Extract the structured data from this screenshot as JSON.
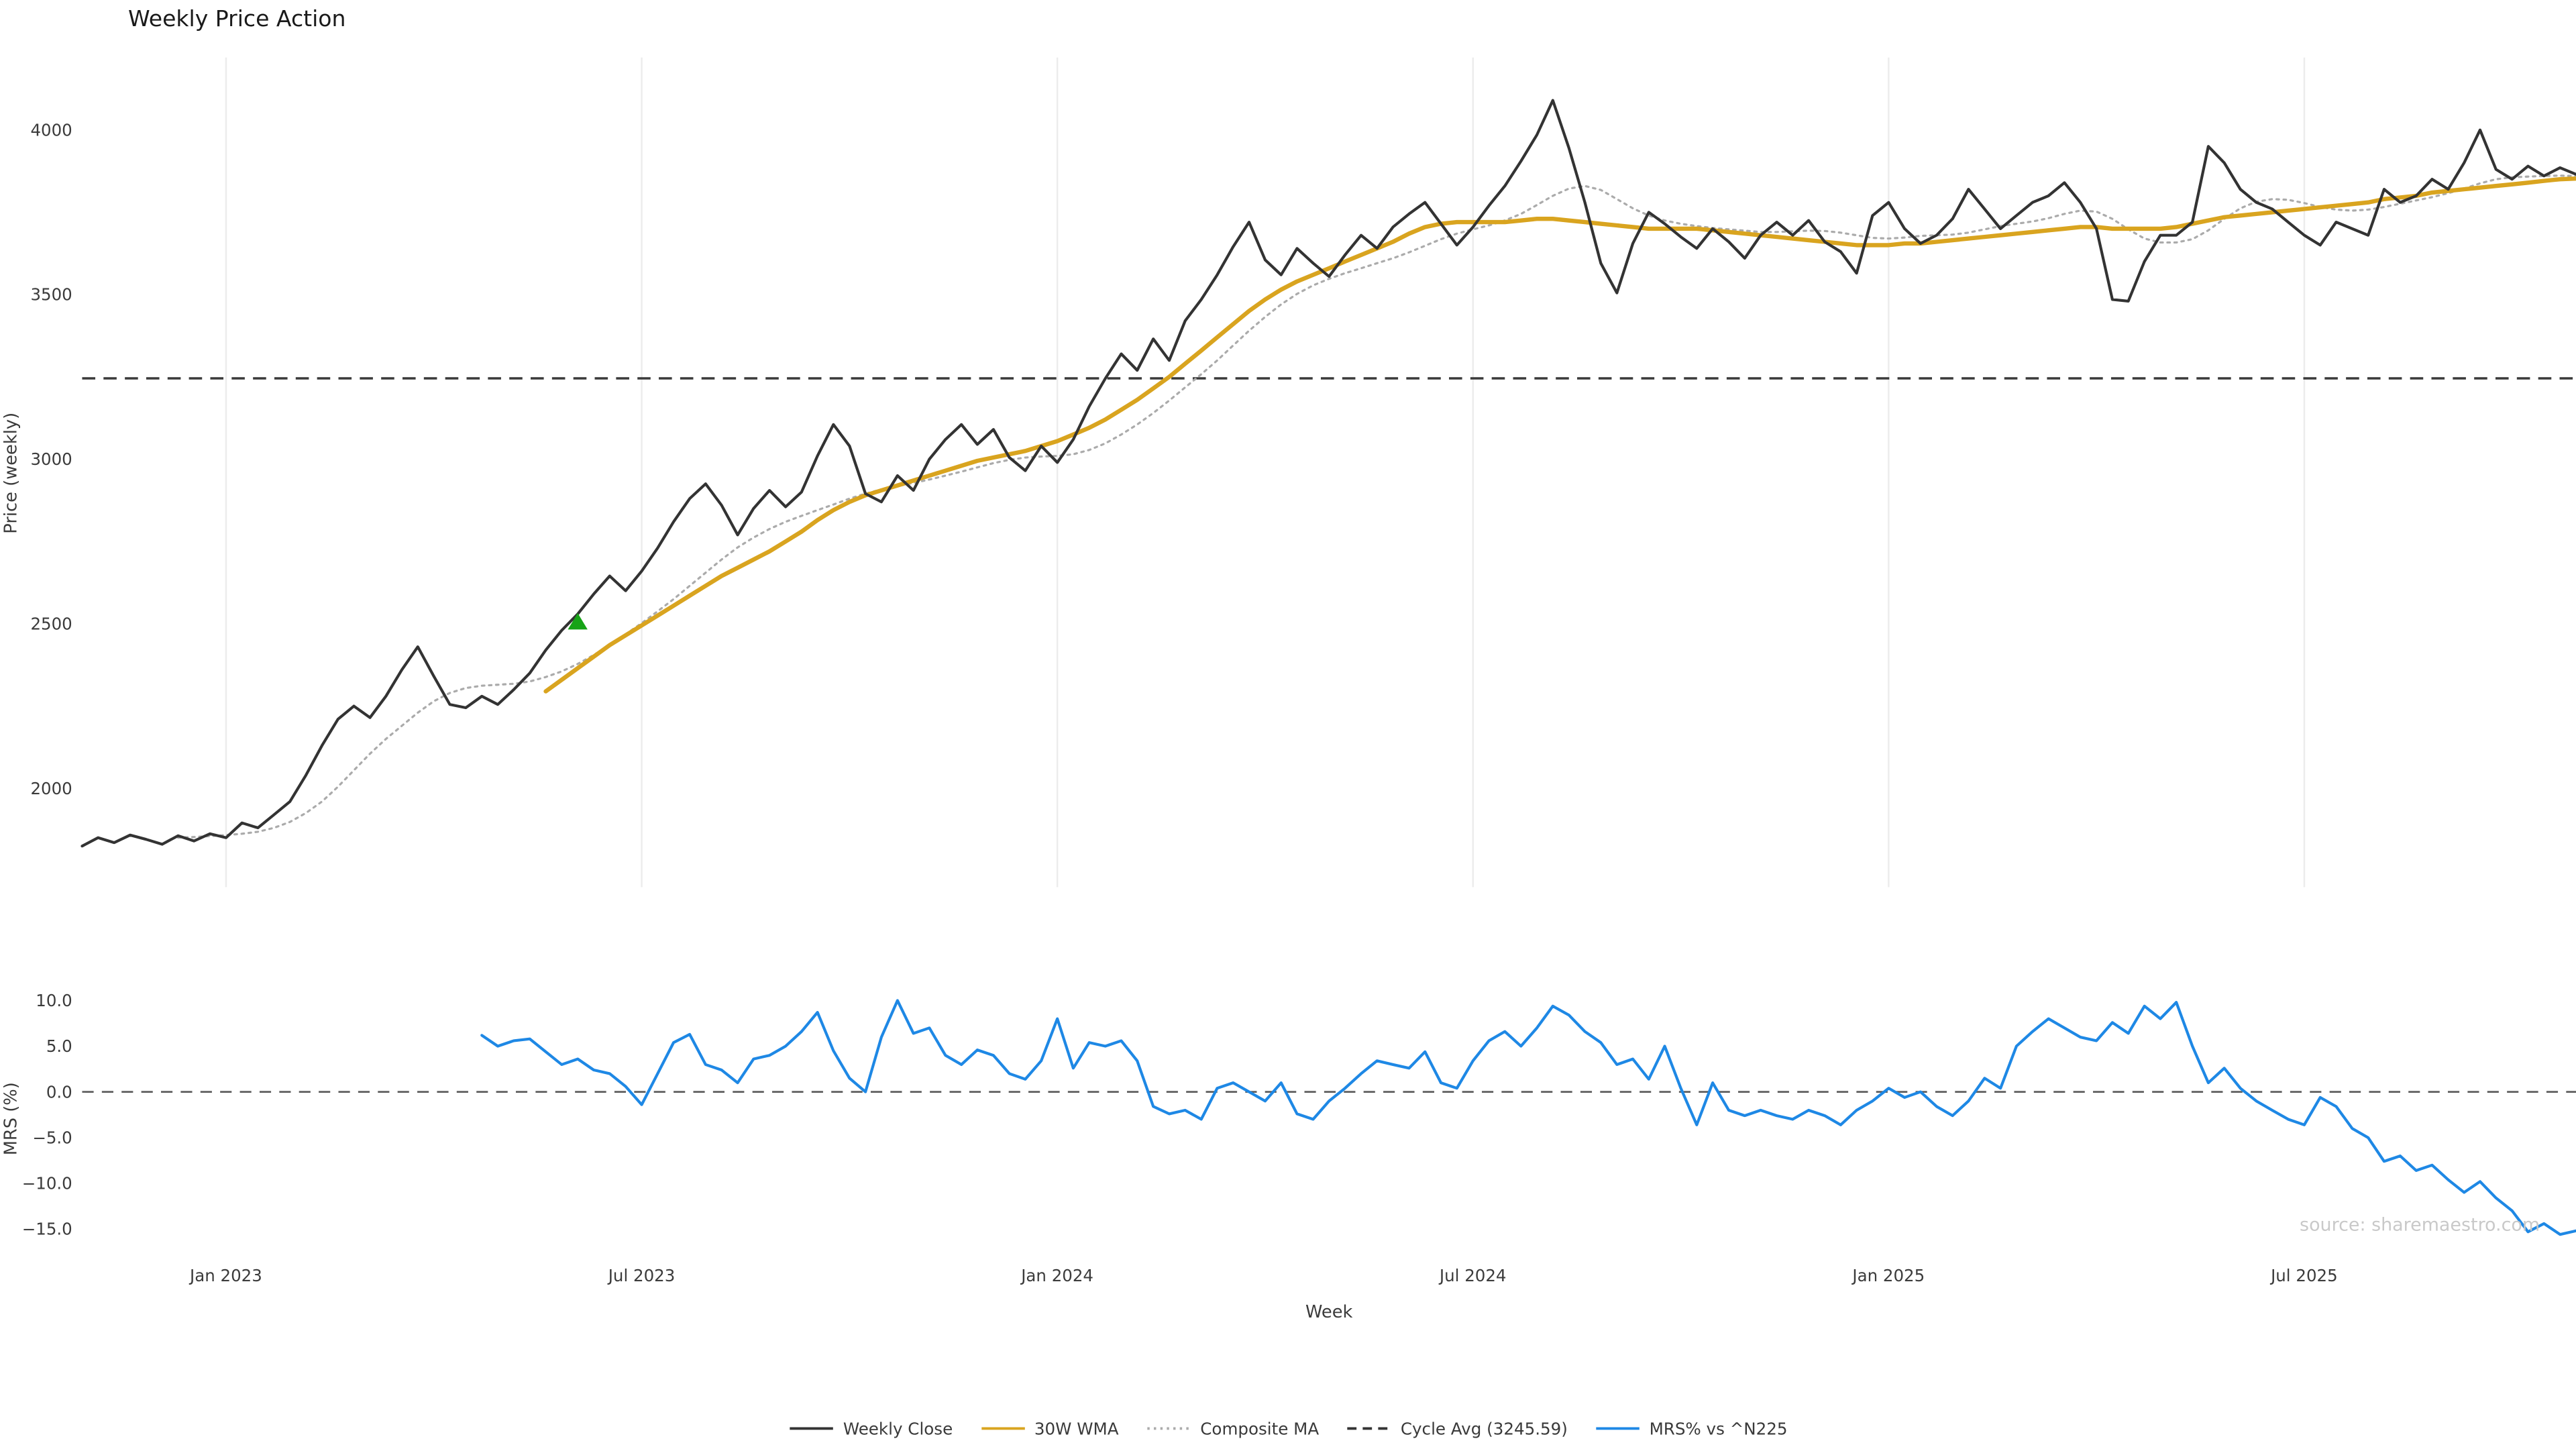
{
  "page": {
    "title": "Weekly Price Action",
    "source": "source: sharemaestro.com"
  },
  "legend": [
    {
      "label": "Weekly Close",
      "style": "solid",
      "color": "#333333"
    },
    {
      "label": "30W WMA",
      "style": "solid",
      "color": "#d9a41f"
    },
    {
      "label": "Composite MA",
      "style": "dotted",
      "color": "#ababab"
    },
    {
      "label": "Cycle Avg (3245.59)",
      "style": "dashed",
      "color": "#333333"
    },
    {
      "label": "MRS% vs ^N225",
      "style": "solid",
      "color": "#1e88e5"
    }
  ],
  "chart_data": {
    "type": "line",
    "title": "Weekly Price Action",
    "xlabel": "Week",
    "x_unit": "week_index",
    "weeks_total": 157,
    "x_ticks": [
      {
        "week": 9,
        "label": "Jan 2023"
      },
      {
        "week": 35,
        "label": "Jul 2023"
      },
      {
        "week": 61,
        "label": "Jan 2024"
      },
      {
        "week": 87,
        "label": "Jul 2024"
      },
      {
        "week": 113,
        "label": "Jan 2025"
      },
      {
        "week": 139,
        "label": "Jul 2025"
      }
    ],
    "panels": [
      {
        "name": "price",
        "ylabel": "Price (weekly)",
        "ylim": [
          1700,
          4220
        ],
        "yticks": [
          2000,
          2500,
          3000,
          3500,
          4000
        ],
        "cycle_avg": 3245.59,
        "grid_vertical": true,
        "markers": [
          {
            "week": 31,
            "value": 2505,
            "shape": "triangle-up",
            "color": "#17a317",
            "meaning": "signal-marker"
          }
        ],
        "series": [
          {
            "name": "Weekly Close",
            "color": "#333333",
            "width": 1.7,
            "dash": null,
            "start_week": 0,
            "values": [
              1825,
              1850,
              1835,
              1858,
              1845,
              1830,
              1856,
              1840,
              1862,
              1850,
              1895,
              1880,
              1920,
              1960,
              2040,
              2130,
              2210,
              2250,
              2215,
              2280,
              2360,
              2430,
              2340,
              2255,
              2245,
              2280,
              2255,
              2300,
              2350,
              2420,
              2480,
              2530,
              2590,
              2645,
              2600,
              2660,
              2730,
              2810,
              2880,
              2925,
              2860,
              2770,
              2850,
              2905,
              2855,
              2900,
              3010,
              3105,
              3040,
              2895,
              2870,
              2950,
              2905,
              3000,
              3060,
              3105,
              3045,
              3090,
              3005,
              2965,
              3040,
              2990,
              3060,
              3160,
              3245,
              3320,
              3270,
              3365,
              3300,
              3420,
              3485,
              3560,
              3645,
              3720,
              3605,
              3560,
              3640,
              3595,
              3555,
              3620,
              3680,
              3640,
              3705,
              3745,
              3780,
              3715,
              3650,
              3705,
              3770,
              3830,
              3905,
              3985,
              4090,
              3945,
              3780,
              3595,
              3505,
              3655,
              3750,
              3715,
              3675,
              3640,
              3700,
              3660,
              3610,
              3680,
              3720,
              3680,
              3725,
              3660,
              3630,
              3565,
              3740,
              3780,
              3700,
              3655,
              3680,
              3730,
              3820,
              3760,
              3700,
              3740,
              3780,
              3800,
              3840,
              3780,
              3700,
              3485,
              3480,
              3600,
              3680,
              3680,
              3720,
              3950,
              3900,
              3820,
              3780,
              3760,
              3720,
              3680,
              3650,
              3720,
              3700,
              3680,
              3820,
              3780,
              3800,
              3850,
              3820,
              3900,
              4000,
              3880,
              3850,
              3890,
              3860,
              3885,
              3865
            ]
          },
          {
            "name": "30W WMA",
            "color": "#d9a41f",
            "width": 2.6,
            "dash": null,
            "start_week": 29,
            "values": [
              2295,
              2330,
              2365,
              2400,
              2435,
              2465,
              2495,
              2525,
              2555,
              2585,
              2615,
              2645,
              2670,
              2695,
              2720,
              2750,
              2780,
              2815,
              2845,
              2870,
              2890,
              2905,
              2920,
              2935,
              2950,
              2965,
              2980,
              2995,
              3005,
              3015,
              3025,
              3040,
              3055,
              3075,
              3095,
              3120,
              3150,
              3180,
              3215,
              3250,
              3290,
              3330,
              3370,
              3410,
              3450,
              3485,
              3515,
              3540,
              3560,
              3580,
              3600,
              3620,
              3640,
              3660,
              3685,
              3705,
              3715,
              3720,
              3720,
              3720,
              3720,
              3725,
              3730,
              3730,
              3725,
              3720,
              3715,
              3710,
              3705,
              3700,
              3700,
              3700,
              3700,
              3695,
              3690,
              3685,
              3680,
              3675,
              3670,
              3665,
              3660,
              3655,
              3650,
              3650,
              3650,
              3655,
              3655,
              3660,
              3665,
              3670,
              3675,
              3680,
              3685,
              3690,
              3695,
              3700,
              3705,
              3705,
              3700,
              3700,
              3700,
              3700,
              3705,
              3715,
              3725,
              3735,
              3740,
              3745,
              3750,
              3755,
              3760,
              3765,
              3770,
              3775,
              3780,
              3790,
              3795,
              3800,
              3810,
              3815,
              3820,
              3825,
              3830,
              3835,
              3840,
              3845,
              3850,
              3852
            ]
          },
          {
            "name": "Composite MA",
            "color": "#ababab",
            "width": 1.3,
            "dash": "1.5,2.8",
            "start_week": 6,
            "values": [
              1850,
              1852,
              1855,
              1858,
              1862,
              1868,
              1880,
              1898,
              1925,
              1960,
              2005,
              2055,
              2105,
              2150,
              2190,
              2230,
              2265,
              2290,
              2305,
              2312,
              2315,
              2318,
              2325,
              2338,
              2355,
              2378,
              2405,
              2435,
              2468,
              2502,
              2538,
              2575,
              2615,
              2655,
              2695,
              2732,
              2762,
              2788,
              2810,
              2828,
              2845,
              2862,
              2880,
              2895,
              2908,
              2918,
              2928,
              2938,
              2950,
              2962,
              2975,
              2988,
              2998,
              3005,
              3008,
              3010,
              3015,
              3028,
              3048,
              3075,
              3105,
              3140,
              3178,
              3218,
              3258,
              3300,
              3345,
              3390,
              3432,
              3470,
              3502,
              3528,
              3548,
              3565,
              3580,
              3595,
              3610,
              3628,
              3648,
              3668,
              3685,
              3698,
              3710,
              3725,
              3745,
              3772,
              3800,
              3822,
              3830,
              3818,
              3790,
              3762,
              3740,
              3725,
              3715,
              3708,
              3702,
              3698,
              3694,
              3690,
              3690,
              3692,
              3694,
              3693,
              3688,
              3680,
              3672,
              3670,
              3673,
              3678,
              3680,
              3682,
              3688,
              3698,
              3708,
              3715,
              3722,
              3732,
              3745,
              3755,
              3752,
              3730,
              3698,
              3670,
              3658,
              3658,
              3668,
              3695,
              3730,
              3762,
              3782,
              3790,
              3788,
              3778,
              3766,
              3758,
              3755,
              3758,
              3766,
              3776,
              3786,
              3796,
              3808,
              3822,
              3838,
              3850,
              3856,
              3858,
              3860,
              3861,
              3860
            ]
          }
        ]
      },
      {
        "name": "mrs",
        "ylabel": "MRS (%)",
        "ylim": [
          -17.5,
          11.8
        ],
        "yticks": [
          -15,
          -10,
          -5,
          0,
          5,
          10
        ],
        "ytick_labels": [
          "−15.0",
          "−10.0",
          "−5.0",
          "0.0",
          "5.0",
          "10.0"
        ],
        "zero_line": 0,
        "series": [
          {
            "name": "MRS% vs ^N225",
            "color": "#1e88e5",
            "width": 1.7,
            "dash": null,
            "start_week": 25,
            "values": [
              6.2,
              5.0,
              5.6,
              5.8,
              4.4,
              3.0,
              3.6,
              2.4,
              2.0,
              0.6,
              -1.4,
              2.0,
              5.4,
              6.3,
              3.0,
              2.4,
              1.0,
              3.6,
              4.0,
              5.0,
              6.6,
              8.7,
              4.5,
              1.5,
              0.0,
              6.0,
              10.0,
              6.4,
              7.0,
              4.0,
              3.0,
              4.6,
              4.0,
              2.0,
              1.4,
              3.4,
              8.0,
              2.6,
              5.4,
              5.0,
              5.6,
              3.4,
              -1.6,
              -2.4,
              -2.0,
              -3.0,
              0.4,
              1.0,
              0.0,
              -1.0,
              1.0,
              -2.4,
              -3.0,
              -1.0,
              0.4,
              2.0,
              3.4,
              3.0,
              2.6,
              4.4,
              1.0,
              0.4,
              3.4,
              5.6,
              6.6,
              5.0,
              7.0,
              9.4,
              8.4,
              6.6,
              5.4,
              3.0,
              3.6,
              1.4,
              5.0,
              0.4,
              -3.6,
              1.0,
              -2.0,
              -2.6,
              -2.0,
              -2.6,
              -3.0,
              -2.0,
              -2.6,
              -3.6,
              -2.0,
              -1.0,
              0.4,
              -0.6,
              0.0,
              -1.6,
              -2.6,
              -1.0,
              1.5,
              0.4,
              5.0,
              6.6,
              8.0,
              7.0,
              6.0,
              5.6,
              7.6,
              6.4,
              9.4,
              8.0,
              9.8,
              5.0,
              1.0,
              2.6,
              0.4,
              -1.0,
              -2.0,
              -3.0,
              -3.6,
              -0.6,
              -1.6,
              -4.0,
              -5.0,
              -7.6,
              -7.0,
              -8.6,
              -8.0,
              -9.6,
              -11.0,
              -9.8,
              -11.6,
              -13.0,
              -15.3,
              -14.4,
              -15.6,
              -15.2
            ]
          }
        ]
      }
    ]
  }
}
